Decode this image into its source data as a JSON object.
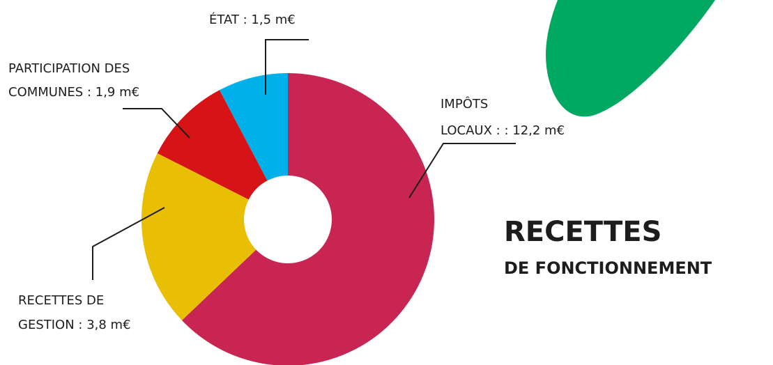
{
  "chart_data": {
    "type": "donut",
    "title": "RECETTES",
    "subtitle": "DE FONCTIONNEMENT",
    "labels": [
      [
        "IMPÔTS",
        "LOCAUX :  : 12,2 m€"
      ],
      [
        "RECETTES DE",
        "GESTION : 3,8 m€"
      ],
      [
        "PARTICIPATION DES",
        "COMMUNES : 1,9 m€"
      ],
      [
        "ÉTAT : 1,5 m€"
      ]
    ],
    "values": [
      12.2,
      3.8,
      1.9,
      1.5
    ],
    "colors": [
      "#c92552",
      "#e9bf05",
      "#d61317",
      "#00b0e8"
    ]
  }
}
